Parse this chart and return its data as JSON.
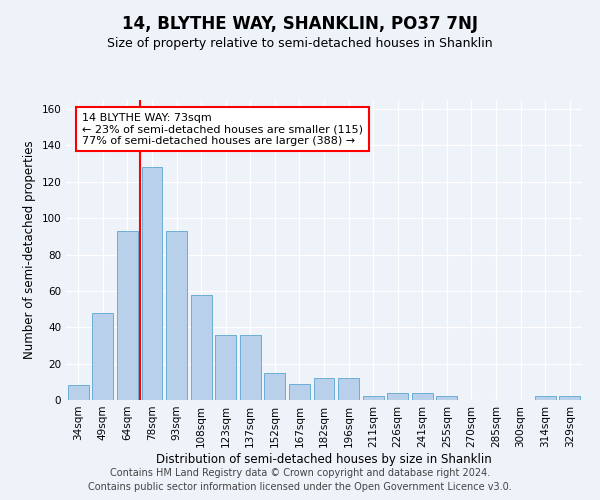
{
  "title": "14, BLYTHE WAY, SHANKLIN, PO37 7NJ",
  "subtitle": "Size of property relative to semi-detached houses in Shanklin",
  "xlabel": "Distribution of semi-detached houses by size in Shanklin",
  "ylabel": "Number of semi-detached properties",
  "categories": [
    "34sqm",
    "49sqm",
    "64sqm",
    "78sqm",
    "93sqm",
    "108sqm",
    "123sqm",
    "137sqm",
    "152sqm",
    "167sqm",
    "182sqm",
    "196sqm",
    "211sqm",
    "226sqm",
    "241sqm",
    "255sqm",
    "270sqm",
    "285sqm",
    "300sqm",
    "314sqm",
    "329sqm"
  ],
  "values": [
    8,
    48,
    93,
    128,
    93,
    58,
    36,
    36,
    15,
    9,
    12,
    12,
    2,
    4,
    4,
    2,
    0,
    0,
    0,
    2,
    2
  ],
  "bar_color": "#b8d0ea",
  "bar_edge_color": "#6aaed6",
  "vline_x_index": 2,
  "vline_color": "red",
  "annotation_text": "14 BLYTHE WAY: 73sqm\n← 23% of semi-detached houses are smaller (115)\n77% of semi-detached houses are larger (388) →",
  "annotation_box_color": "white",
  "annotation_box_edge_color": "red",
  "ylim": [
    0,
    165
  ],
  "yticks": [
    0,
    20,
    40,
    60,
    80,
    100,
    120,
    140,
    160
  ],
  "footer1": "Contains HM Land Registry data © Crown copyright and database right 2024.",
  "footer2": "Contains public sector information licensed under the Open Government Licence v3.0.",
  "title_fontsize": 12,
  "subtitle_fontsize": 9,
  "axis_label_fontsize": 8.5,
  "tick_fontsize": 7.5,
  "annotation_fontsize": 8,
  "footer_fontsize": 7,
  "bg_color": "#eef2f9"
}
